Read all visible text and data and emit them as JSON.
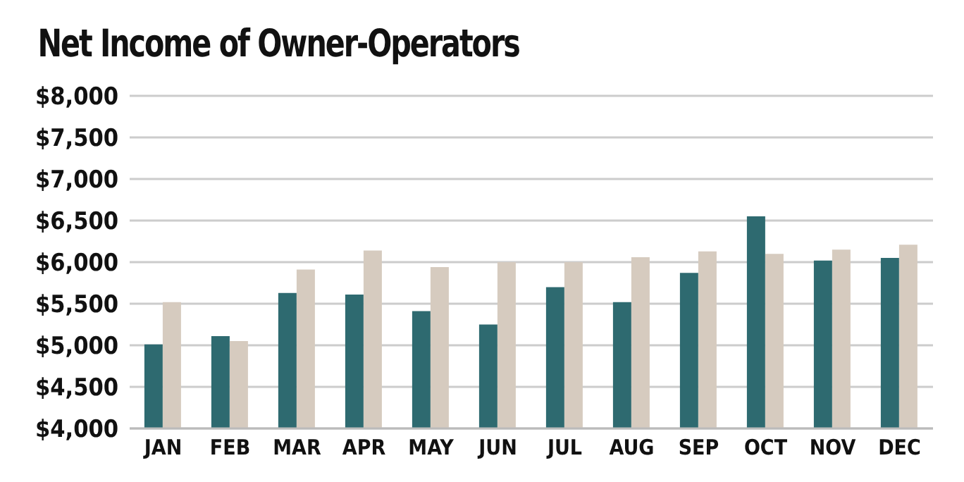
{
  "chart_data": {
    "type": "bar",
    "title": "Net Income of Owner-Operators",
    "categories": [
      "JAN",
      "FEB",
      "MAR",
      "APR",
      "MAY",
      "JUN",
      "JUL",
      "AUG",
      "SEP",
      "OCT",
      "NOV",
      "DEC"
    ],
    "series": [
      {
        "color": "#2e6a70",
        "values": [
          5010,
          5110,
          5630,
          5610,
          5410,
          5250,
          5700,
          5520,
          5870,
          6550,
          6020,
          6050
        ]
      },
      {
        "color": "#d6cbbf",
        "values": [
          5520,
          5050,
          5910,
          6140,
          5940,
          6000,
          6000,
          6060,
          6130,
          6100,
          6150,
          6210
        ]
      }
    ],
    "ylim": [
      4000,
      8000
    ],
    "yticks": [
      {
        "value": 4000,
        "label": "$4,000"
      },
      {
        "value": 4500,
        "label": "$4,500"
      },
      {
        "value": 5000,
        "label": "$5,000"
      },
      {
        "value": 5500,
        "label": "$5,500"
      },
      {
        "value": 6000,
        "label": "$6,000"
      },
      {
        "value": 6500,
        "label": "$6,500"
      },
      {
        "value": 7000,
        "label": "$7,000"
      },
      {
        "value": 7500,
        "label": "$7,500"
      },
      {
        "value": 8000,
        "label": "$8,000"
      }
    ],
    "grid": "y",
    "legend": false
  }
}
